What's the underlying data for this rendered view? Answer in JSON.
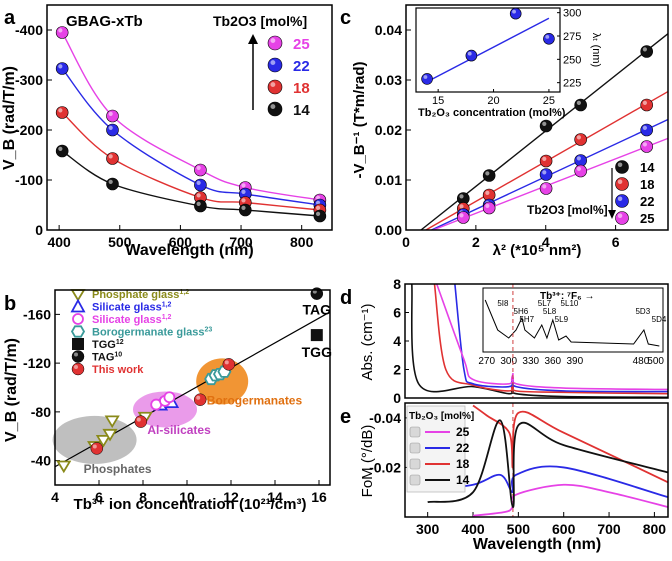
{
  "colors": {
    "p25": "#e642e6",
    "p22": "#2a2ae6",
    "p18": "#e03232",
    "p14": "#111111",
    "phos": "#8a8a1a",
    "sil": "#2a2ae6",
    "silp": "#e642e6",
    "boro": "#3a9a9a",
    "tgg": "#111111",
    "tag": "#111111",
    "work": "#e03232",
    "phosGroup": "#b4b4b4",
    "alGroup": "#e68ae6",
    "boroGroup": "#f08a1e"
  },
  "chart_data": [
    {
      "type": "line",
      "panel_label": "a",
      "title": "GBAG-xTb",
      "xlabel": "Wavelength (nm)",
      "ylabel": "V_B (rad/T/m)",
      "xlim": [
        380,
        850
      ],
      "ylim": [
        0,
        -450
      ],
      "xticks": [
        400,
        500,
        600,
        700,
        800
      ],
      "yticks": [
        0,
        -100,
        -200,
        -300,
        -400
      ],
      "legend_title": "Tb2O3 [mol%]",
      "x": [
        405,
        488,
        633,
        707,
        830
      ],
      "series": [
        {
          "name": "25",
          "color_key": "p25",
          "values": [
            -395,
            -228,
            -120,
            -85,
            -60
          ]
        },
        {
          "name": "22",
          "color_key": "p22",
          "values": [
            -323,
            -200,
            -90,
            -72,
            -50
          ]
        },
        {
          "name": "18",
          "color_key": "p18",
          "values": [
            -235,
            -143,
            -65,
            -55,
            -40
          ]
        },
        {
          "name": "14",
          "color_key": "p14",
          "values": [
            -158,
            -92,
            -48,
            -40,
            -28
          ]
        }
      ]
    },
    {
      "type": "scatter",
      "panel_label": "b",
      "xlabel": "Tb3+ ion concentration (10^21/cm^3)",
      "ylabel": "V_B (rad/T/m)",
      "xlim": [
        4,
        16.5
      ],
      "ylim": [
        -20,
        -180
      ],
      "xticks": [
        4,
        6,
        8,
        10,
        12,
        14,
        16
      ],
      "yticks": [
        -40,
        -80,
        -120,
        -160
      ],
      "fit_line": {
        "x": [
          4,
          16.5
        ],
        "y": [
          -35,
          -162
        ]
      },
      "group_labels": [
        "Phosphates",
        "Al-silicates",
        "Borogermanates"
      ],
      "point_labels": [
        "TAG",
        "TGG"
      ],
      "series": [
        {
          "name": "Phosphate glass",
          "ref": "1,2",
          "marker": "triangle-down-open",
          "color_key": "phos",
          "x": [
            4.4,
            5.8,
            6.2,
            6.5,
            6.6,
            8.1
          ],
          "y": [
            -36,
            -52,
            -57,
            -62,
            -73,
            -76
          ]
        },
        {
          "name": "Silicate glass",
          "ref": "1,2",
          "marker": "triangle-open",
          "color_key": "sil",
          "x": [
            8.8,
            9.1,
            9.3
          ],
          "y": [
            -86,
            -90,
            -88
          ]
        },
        {
          "name": "Silicate glass",
          "ref": "1,2",
          "marker": "circle-open",
          "color_key": "silp",
          "x": [
            8.6,
            9.0,
            9.2
          ],
          "y": [
            -86,
            -89,
            -92
          ]
        },
        {
          "name": "Borogermanate glass",
          "ref": "23",
          "marker": "hexagon-open",
          "color_key": "boro",
          "x": [
            11.1,
            11.3,
            11.5,
            11.7
          ],
          "y": [
            -107,
            -110,
            -111,
            -113
          ]
        },
        {
          "name": "TGG",
          "ref": "12",
          "marker": "square",
          "color_key": "tgg",
          "x": [
            15.9
          ],
          "y": [
            -143
          ]
        },
        {
          "name": "TAG",
          "ref": "10",
          "marker": "circle",
          "color_key": "tag",
          "x": [
            15.9
          ],
          "y": [
            -177
          ]
        },
        {
          "name": "This work",
          "ref": "",
          "marker": "circle",
          "color_key": "work",
          "x": [
            5.9,
            7.9,
            10.6,
            11.9
          ],
          "y": [
            -50,
            -72,
            -90,
            -119
          ]
        }
      ]
    },
    {
      "type": "scatter",
      "panel_label": "c",
      "xlabel": "λ² (*10^5 nm²)",
      "ylabel": "-V_B^-1 (T*m/rad)",
      "xlim": [
        0,
        7.5
      ],
      "ylim": [
        0,
        0.045
      ],
      "xticks": [
        0,
        2,
        4,
        6
      ],
      "yticks": [
        0.0,
        0.01,
        0.02,
        0.03,
        0.04
      ],
      "legend_title": "Tb2O3 [mol%]",
      "x": [
        1.64,
        2.38,
        4.01,
        5.0,
        6.89
      ],
      "series": [
        {
          "name": "14",
          "color_key": "p14",
          "values": [
            0.0063,
            0.0109,
            0.0208,
            0.025,
            0.0357
          ]
        },
        {
          "name": "18",
          "color_key": "p18",
          "values": [
            0.0043,
            0.007,
            0.0138,
            0.0181,
            0.025
          ]
        },
        {
          "name": "22",
          "color_key": "p22",
          "values": [
            0.0031,
            0.005,
            0.0111,
            0.0139,
            0.02
          ]
        },
        {
          "name": "25",
          "color_key": "p25",
          "values": [
            0.0025,
            0.0044,
            0.0083,
            0.0118,
            0.0167
          ]
        }
      ],
      "inset": {
        "type": "scatter",
        "xlabel": "Tb2O3 concentration (mol%)",
        "ylabel": "λt (nm)",
        "xlim": [
          13,
          26
        ],
        "ylim": [
          215,
          305
        ],
        "xticks": [
          15,
          20,
          25
        ],
        "yticks": [
          225,
          250,
          275,
          300
        ],
        "x": [
          14,
          18,
          22,
          25
        ],
        "y": [
          229,
          254,
          299,
          272
        ],
        "fit": {
          "x": [
            14,
            25
          ],
          "y": [
            226,
            294
          ]
        }
      }
    },
    {
      "type": "line",
      "panel_label": "d",
      "xlabel": "",
      "ylabel": "Abs. (cm^-1)",
      "xlim": [
        250,
        830
      ],
      "ylim": [
        0,
        8
      ],
      "yticks": [
        0,
        2,
        4,
        6,
        8
      ],
      "inset": {
        "title": "Tb3+: 7F6 →",
        "xlim": [
          265,
          510
        ],
        "xticks": [
          270,
          300,
          330,
          360,
          390,
          480,
          500
        ],
        "transitions": [
          "5I8",
          "5H6",
          "5H7",
          "5L7",
          "5L8",
          "5L9",
          "5L10",
          "5D3",
          "5D4"
        ]
      },
      "series": [
        {
          "name": "25",
          "color_key": "p25",
          "points": [
            [
              320,
              8
            ],
            [
              380,
              2.7
            ],
            [
              400,
              1.3
            ],
            [
              480,
              1.0
            ],
            [
              488,
              1.7
            ],
            [
              495,
              1.0
            ],
            [
              600,
              0.7
            ],
            [
              830,
              0.6
            ]
          ]
        },
        {
          "name": "22",
          "color_key": "p22",
          "points": [
            [
              360,
              8
            ],
            [
              380,
              2.0
            ],
            [
              400,
              1.0
            ],
            [
              480,
              0.8
            ],
            [
              488,
              1.4
            ],
            [
              495,
              0.8
            ],
            [
              600,
              0.5
            ],
            [
              830,
              0.45
            ]
          ]
        },
        {
          "name": "18",
          "color_key": "p18",
          "points": [
            [
              315,
              8
            ],
            [
              340,
              2.0
            ],
            [
              400,
              0.9
            ],
            [
              480,
              0.5
            ],
            [
              488,
              1.0
            ],
            [
              495,
              0.5
            ],
            [
              600,
              0.4
            ],
            [
              830,
              0.3
            ]
          ]
        },
        {
          "name": "14",
          "color_key": "p14",
          "points": [
            [
              265,
              8
            ],
            [
              280,
              1.0
            ],
            [
              400,
              0.8
            ],
            [
              480,
              0.3
            ],
            [
              488,
              0.7
            ],
            [
              495,
              0.3
            ],
            [
              600,
              0.1
            ],
            [
              830,
              0.05
            ]
          ]
        }
      ]
    },
    {
      "type": "line",
      "panel_label": "e",
      "xlabel": "Wavelength (nm)",
      "ylabel": "FoM (°/dB)",
      "xlim": [
        250,
        830
      ],
      "ylim": [
        0,
        -0.046
      ],
      "xticks": [
        300,
        400,
        500,
        600,
        700,
        800
      ],
      "yticks": [
        -0.02,
        -0.04
      ],
      "legend_title": "Tb2O3 [mol%]",
      "series": [
        {
          "name": "25",
          "color_key": "p25",
          "points": [
            [
              400,
              -0.0005
            ],
            [
              470,
              -0.002
            ],
            [
              487,
              -0.004
            ],
            [
              495,
              -0.009
            ],
            [
              600,
              -0.013
            ],
            [
              700,
              -0.01
            ],
            [
              830,
              -0.004
            ]
          ]
        },
        {
          "name": "22",
          "color_key": "p22",
          "points": [
            [
              300,
              -0.011
            ],
            [
              400,
              -0.013
            ],
            [
              460,
              -0.017
            ],
            [
              487,
              -0.01
            ],
            [
              495,
              -0.017
            ],
            [
              600,
              -0.02
            ],
            [
              830,
              -0.008
            ]
          ]
        },
        {
          "name": "18",
          "color_key": "p18",
          "points": [
            [
              400,
              -0.045
            ],
            [
              430,
              -0.041
            ],
            [
              480,
              -0.034
            ],
            [
              488,
              -0.02
            ],
            [
              500,
              -0.042
            ],
            [
              600,
              -0.034
            ],
            [
              830,
              -0.014
            ]
          ]
        },
        {
          "name": "14",
          "color_key": "p14",
          "points": [
            [
              300,
              -0.006
            ],
            [
              400,
              -0.01
            ],
            [
              460,
              -0.039
            ],
            [
              488,
              -0.004
            ],
            [
              500,
              -0.037
            ],
            [
              600,
              -0.029
            ],
            [
              830,
              -0.018
            ]
          ]
        }
      ]
    }
  ]
}
